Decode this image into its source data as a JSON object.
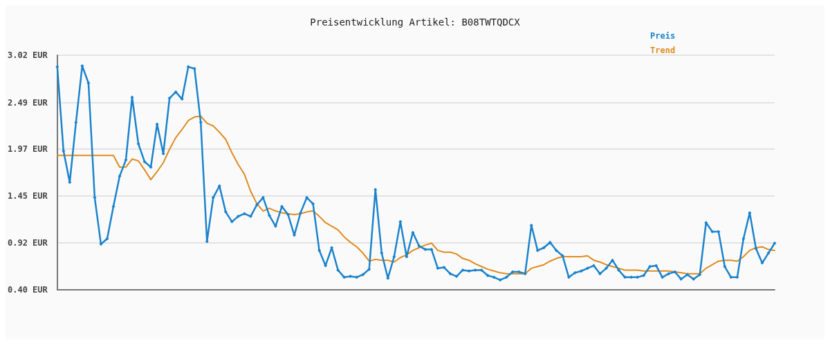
{
  "chart_data": {
    "type": "line",
    "title": "Preisentwicklung Artikel: B08TWTQDCX",
    "categories": [
      null,
      null,
      null,
      null,
      null,
      null,
      null,
      null,
      null,
      null,
      null,
      null,
      null,
      null,
      null,
      null,
      null,
      null,
      null,
      null,
      null,
      null,
      null,
      null,
      null,
      null,
      null,
      null,
      null,
      null,
      null,
      null,
      null,
      null,
      null,
      null,
      null,
      null,
      null,
      null,
      null,
      null,
      null,
      null,
      null,
      null,
      null,
      null,
      null,
      null,
      null,
      null,
      null,
      null,
      null,
      null,
      null,
      null,
      null,
      null,
      null,
      null,
      null,
      null,
      null,
      null,
      null,
      null,
      null,
      null,
      null,
      null,
      null,
      null,
      null,
      null,
      null,
      null,
      null,
      null,
      null,
      null,
      null,
      null,
      null,
      null,
      null,
      null,
      null,
      null,
      null,
      null,
      null,
      null,
      null,
      null,
      null,
      null,
      null,
      null,
      null,
      null,
      null,
      null,
      null,
      null,
      null,
      null,
      null,
      null,
      null,
      null,
      null,
      null,
      null,
      null
    ],
    "series": [
      {
        "name": "Preis",
        "color": "#1a83cc",
        "marker": "diamond",
        "values": [
          2.89,
          1.95,
          1.6,
          2.27,
          2.9,
          2.71,
          1.43,
          0.91,
          0.97,
          1.33,
          1.67,
          1.85,
          2.55,
          2.03,
          1.83,
          1.77,
          2.25,
          1.92,
          2.54,
          2.61,
          2.53,
          2.89,
          2.87,
          2.27,
          0.94,
          1.43,
          1.56,
          1.27,
          1.16,
          1.22,
          1.25,
          1.22,
          1.35,
          1.43,
          1.23,
          1.11,
          1.33,
          1.24,
          1.01,
          1.26,
          1.43,
          1.36,
          0.84,
          0.67,
          0.87,
          0.62,
          0.54,
          0.55,
          0.54,
          0.57,
          0.63,
          1.52,
          0.81,
          0.53,
          0.77,
          1.16,
          0.77,
          1.04,
          0.89,
          0.85,
          0.85,
          0.64,
          0.65,
          0.58,
          0.55,
          0.62,
          0.61,
          0.62,
          0.62,
          0.56,
          0.54,
          0.51,
          0.54,
          0.6,
          0.6,
          0.58,
          1.12,
          0.84,
          0.87,
          0.93,
          0.84,
          0.78,
          0.54,
          0.59,
          0.61,
          0.64,
          0.67,
          0.58,
          0.64,
          0.73,
          0.62,
          0.54,
          0.54,
          0.54,
          0.56,
          0.66,
          0.67,
          0.54,
          0.58,
          0.6,
          0.52,
          0.57,
          0.52,
          0.57,
          1.15,
          1.05,
          1.05,
          0.66,
          0.54,
          0.54,
          0.97,
          1.26,
          0.86,
          0.7,
          0.81,
          0.92
        ]
      },
      {
        "name": "Trend",
        "color": "#e08a1e",
        "marker": "none",
        "values": [
          1.9,
          1.9,
          1.9,
          1.9,
          1.9,
          1.9,
          1.9,
          1.9,
          1.9,
          1.9,
          1.77,
          1.77,
          1.86,
          1.84,
          1.74,
          1.63,
          1.72,
          1.82,
          1.97,
          2.1,
          2.19,
          2.29,
          2.33,
          2.34,
          2.26,
          2.23,
          2.16,
          2.08,
          1.93,
          1.8,
          1.69,
          1.5,
          1.36,
          1.28,
          1.31,
          1.28,
          1.26,
          1.25,
          1.24,
          1.25,
          1.27,
          1.28,
          1.22,
          1.15,
          1.11,
          1.07,
          0.99,
          0.93,
          0.88,
          0.81,
          0.72,
          0.74,
          0.73,
          0.73,
          0.71,
          0.76,
          0.79,
          0.84,
          0.87,
          0.9,
          0.92,
          0.84,
          0.82,
          0.82,
          0.8,
          0.75,
          0.73,
          0.69,
          0.66,
          0.63,
          0.61,
          0.59,
          0.58,
          0.58,
          0.58,
          0.58,
          0.64,
          0.66,
          0.68,
          0.72,
          0.75,
          0.77,
          0.77,
          0.77,
          0.77,
          0.78,
          0.73,
          0.71,
          0.68,
          0.66,
          0.64,
          0.62,
          0.62,
          0.62,
          0.61,
          0.61,
          0.61,
          0.61,
          0.61,
          0.6,
          0.59,
          0.58,
          0.58,
          0.58,
          0.64,
          0.68,
          0.72,
          0.73,
          0.73,
          0.72,
          0.77,
          0.84,
          0.87,
          0.88,
          0.85,
          0.84
        ]
      }
    ],
    "ylim": [
      0.4,
      3.02
    ],
    "yticks": [
      {
        "value": 0.4,
        "label": "0.40 EUR"
      },
      {
        "value": 0.924,
        "label": "0.92 EUR"
      },
      {
        "value": 1.448,
        "label": "1.45 EUR"
      },
      {
        "value": 1.972,
        "label": "1.97 EUR"
      },
      {
        "value": 2.49,
        "label": "2.49 EUR"
      },
      {
        "value": 3.02,
        "label": "3.02 EUR"
      }
    ],
    "grid": "y",
    "legend": "top right",
    "line_style": "solid"
  }
}
